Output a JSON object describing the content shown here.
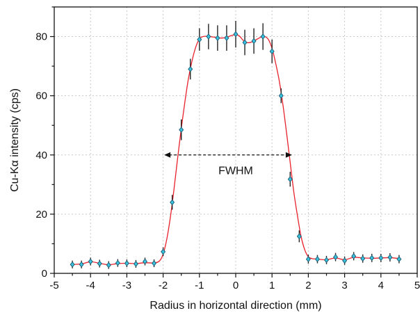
{
  "chart_data": {
    "type": "scatter",
    "xlabel": "Radius in horizontal direction (mm)",
    "ylabel": "Cu-Kα intensity (cps)",
    "xlim": [
      -5,
      5
    ],
    "ylim": [
      0,
      90
    ],
    "xticks": [
      -5,
      -4,
      -3,
      -2,
      -1,
      0,
      1,
      2,
      3,
      4,
      5
    ],
    "xtick_labels": [
      "-5",
      "-4",
      "-3",
      "-2",
      "-1",
      "0",
      "1",
      "2",
      "3",
      "4",
      "5"
    ],
    "yticks": [
      0,
      20,
      40,
      60,
      80
    ],
    "ytick_labels": [
      "0",
      "20",
      "40",
      "60",
      "80"
    ],
    "grid": true,
    "colors": {
      "points": "#39c4df",
      "points_edge": "#1f5f78",
      "fit_line": "#e8212b",
      "error_bars": "#222222"
    },
    "series": [
      {
        "x": [
          -4.5,
          -4.25,
          -4.0,
          -3.75,
          -3.5,
          -3.25,
          -3.0,
          -2.75,
          -2.5,
          -2.25,
          -2.0,
          -1.75,
          -1.5,
          -1.25,
          -1.0,
          -0.75,
          -0.5,
          -0.25,
          0.0,
          0.25,
          0.5,
          0.75,
          1.0,
          1.25,
          1.5,
          1.75,
          2.0,
          2.25,
          2.5,
          2.75,
          3.0,
          3.25,
          3.5,
          3.75,
          4.0,
          4.25,
          4.5
        ],
        "y": [
          3.0,
          3.0,
          4.0,
          3.3,
          2.8,
          3.5,
          3.4,
          3.2,
          4.0,
          3.4,
          7.3,
          24.0,
          48.5,
          69.0,
          79.0,
          80.0,
          79.5,
          79.5,
          80.8,
          78.0,
          78.5,
          80.0,
          75.0,
          60.0,
          31.8,
          12.5,
          4.8,
          4.8,
          4.5,
          5.5,
          4.3,
          5.8,
          5.0,
          5.2,
          5.2,
          5.4,
          4.8
        ],
        "yerr": [
          1.3,
          1.3,
          1.3,
          1.3,
          1.3,
          1.3,
          1.3,
          1.3,
          1.3,
          1.3,
          1.5,
          2.5,
          3.5,
          3.5,
          3.8,
          4.3,
          4.3,
          4.3,
          4.5,
          4.3,
          4.3,
          4.5,
          4.0,
          2.5,
          2.5,
          2.0,
          1.5,
          1.4,
          1.4,
          1.4,
          1.4,
          1.4,
          1.4,
          1.4,
          1.4,
          1.4,
          1.4
        ]
      }
    ],
    "fit_curve": {
      "x": [
        -4.5,
        -4.25,
        -4.0,
        -3.75,
        -3.5,
        -3.25,
        -3.0,
        -2.75,
        -2.5,
        -2.25,
        -2.1,
        -2.0,
        -1.9,
        -1.8,
        -1.7,
        -1.6,
        -1.5,
        -1.4,
        -1.3,
        -1.2,
        -1.1,
        -1.0,
        -0.9,
        -0.8,
        -0.7,
        -0.6,
        -0.5,
        -0.4,
        -0.3,
        -0.2,
        -0.1,
        0.0,
        0.1,
        0.2,
        0.3,
        0.4,
        0.5,
        0.6,
        0.7,
        0.8,
        0.9,
        1.0,
        1.1,
        1.2,
        1.3,
        1.4,
        1.5,
        1.6,
        1.7,
        1.8,
        1.9,
        2.0,
        2.1,
        2.25,
        2.5,
        2.75,
        3.0,
        3.25,
        3.5,
        3.75,
        4.0,
        4.25,
        4.5
      ],
      "y": [
        3.0,
        3.2,
        3.9,
        3.4,
        2.9,
        3.3,
        3.4,
        3.3,
        3.6,
        3.5,
        4.2,
        6.5,
        11.5,
        19.0,
        28.5,
        39.0,
        49.0,
        58.0,
        66.0,
        72.0,
        76.5,
        79.2,
        80.0,
        80.1,
        80.0,
        79.8,
        79.6,
        79.5,
        79.6,
        80.0,
        80.4,
        80.6,
        80.2,
        78.8,
        78.0,
        78.0,
        78.5,
        79.2,
        79.8,
        80.0,
        79.0,
        76.0,
        71.0,
        65.0,
        57.0,
        47.5,
        37.5,
        27.5,
        19.5,
        12.5,
        8.0,
        5.6,
        5.0,
        4.8,
        4.6,
        5.2,
        4.6,
        5.4,
        5.2,
        5.1,
        5.2,
        5.3,
        5.0
      ]
    },
    "annotations": [
      {
        "text": "FWHM",
        "x": 0.0,
        "y": 33.5
      }
    ],
    "fwhm_arrow": {
      "x_start": -1.97,
      "x_end": 1.55,
      "y": 40
    }
  }
}
